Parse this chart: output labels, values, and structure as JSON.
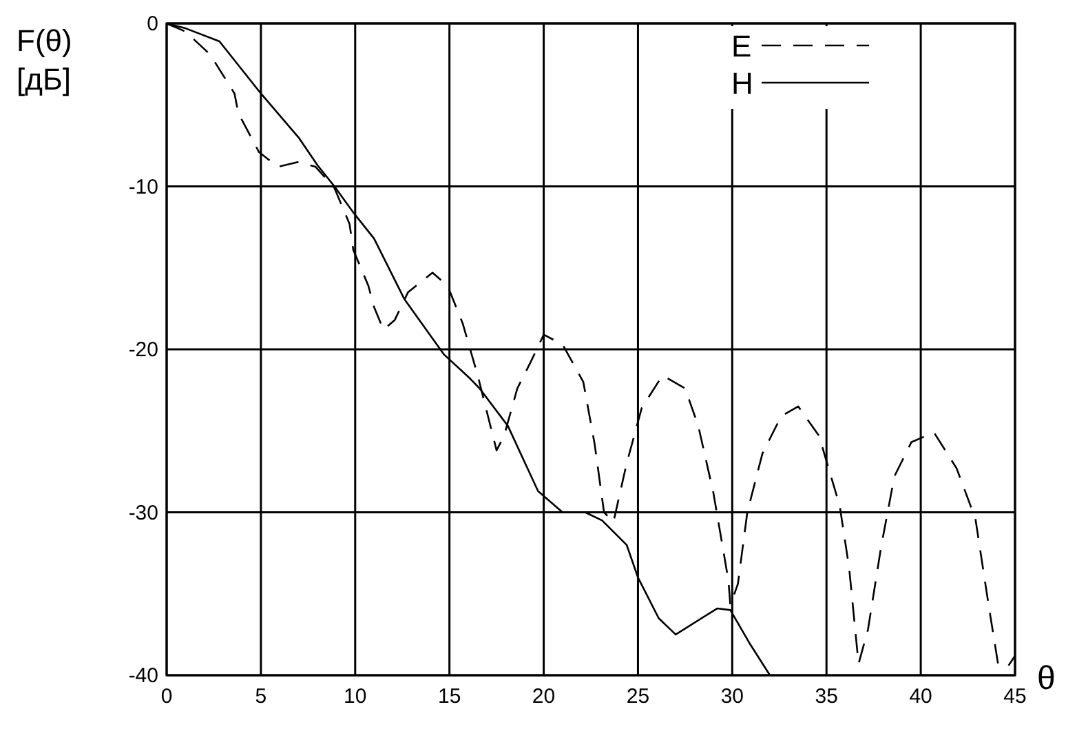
{
  "chart_data": {
    "type": "line",
    "xlabel": "θ",
    "ylabel": "F(θ) [дБ]",
    "xlim": [
      0,
      45
    ],
    "ylim": [
      -40,
      0
    ],
    "xticks": [
      0,
      5,
      10,
      15,
      20,
      25,
      30,
      35,
      40,
      45
    ],
    "yticks": [
      -40,
      -30,
      -20,
      -10,
      0
    ],
    "grid": true,
    "legend": "top right",
    "series": [
      {
        "name": "E",
        "color": "#000000",
        "line_style": "dashed",
        "x": [
          0,
          1,
          2.3,
          3.6,
          3.8,
          4.9,
          5.9,
          7.0,
          7.9,
          8.9,
          9.7,
          9.9,
          10.7,
          11.0,
          11.5,
          12.1,
          12.8,
          14.1,
          14.9,
          15.7,
          16.5,
          17.0,
          17.5,
          17.9,
          18.6,
          19.3,
          20.0,
          21.0,
          22.1,
          22.7,
          23.2,
          23.7,
          24.4,
          25.2,
          26.3,
          27.5,
          28.2,
          29.0,
          29.8,
          29.9,
          30.3,
          30.8,
          31.6,
          32.6,
          33.5,
          34.6,
          35.7,
          36.2,
          36.7,
          37.2,
          37.9,
          38.6,
          39.5,
          40.7,
          41.9,
          42.9,
          43.6,
          44.1,
          44.6,
          45
        ],
        "values": [
          0,
          -0.5,
          -1.9,
          -4.3,
          -5.5,
          -7.9,
          -8.8,
          -8.5,
          -8.8,
          -10.1,
          -12.3,
          -13.9,
          -16.1,
          -17.4,
          -18.8,
          -18.2,
          -16.5,
          -15.3,
          -16.1,
          -18.4,
          -21.6,
          -23.9,
          -26.2,
          -25.3,
          -22.4,
          -20.8,
          -19.1,
          -19.7,
          -22.0,
          -25.8,
          -30.0,
          -30.6,
          -27.0,
          -23.6,
          -21.6,
          -22.4,
          -24.7,
          -28.8,
          -34.2,
          -35.7,
          -34.4,
          -30.0,
          -26.4,
          -24.1,
          -23.5,
          -25.3,
          -29.6,
          -33.4,
          -39.3,
          -37.2,
          -32.1,
          -27.8,
          -25.7,
          -25.1,
          -27.3,
          -30.4,
          -35.7,
          -39.3,
          -39.5,
          -38.8
        ]
      },
      {
        "name": "H",
        "color": "#000000",
        "line_style": "solid",
        "x": [
          0,
          1,
          2.8,
          5.0,
          7.0,
          8.0,
          8.9,
          9.9,
          11.0,
          12.6,
          14.7,
          16.1,
          16.6,
          18.1,
          19.7,
          21.0,
          22.2,
          23.1,
          24.4,
          25,
          26.1,
          27.0,
          29.2,
          29.9,
          30.9,
          32.0
        ],
        "values": [
          0,
          -0.3,
          -1.1,
          -4.3,
          -7.0,
          -8.7,
          -10.0,
          -11.6,
          -13.2,
          -16.9,
          -20.3,
          -21.8,
          -22.4,
          -24.7,
          -28.7,
          -30.0,
          -30.0,
          -30.5,
          -32.0,
          -34.0,
          -36.5,
          -37.5,
          -35.9,
          -36.0,
          -38.0,
          -40.0
        ]
      }
    ]
  }
}
